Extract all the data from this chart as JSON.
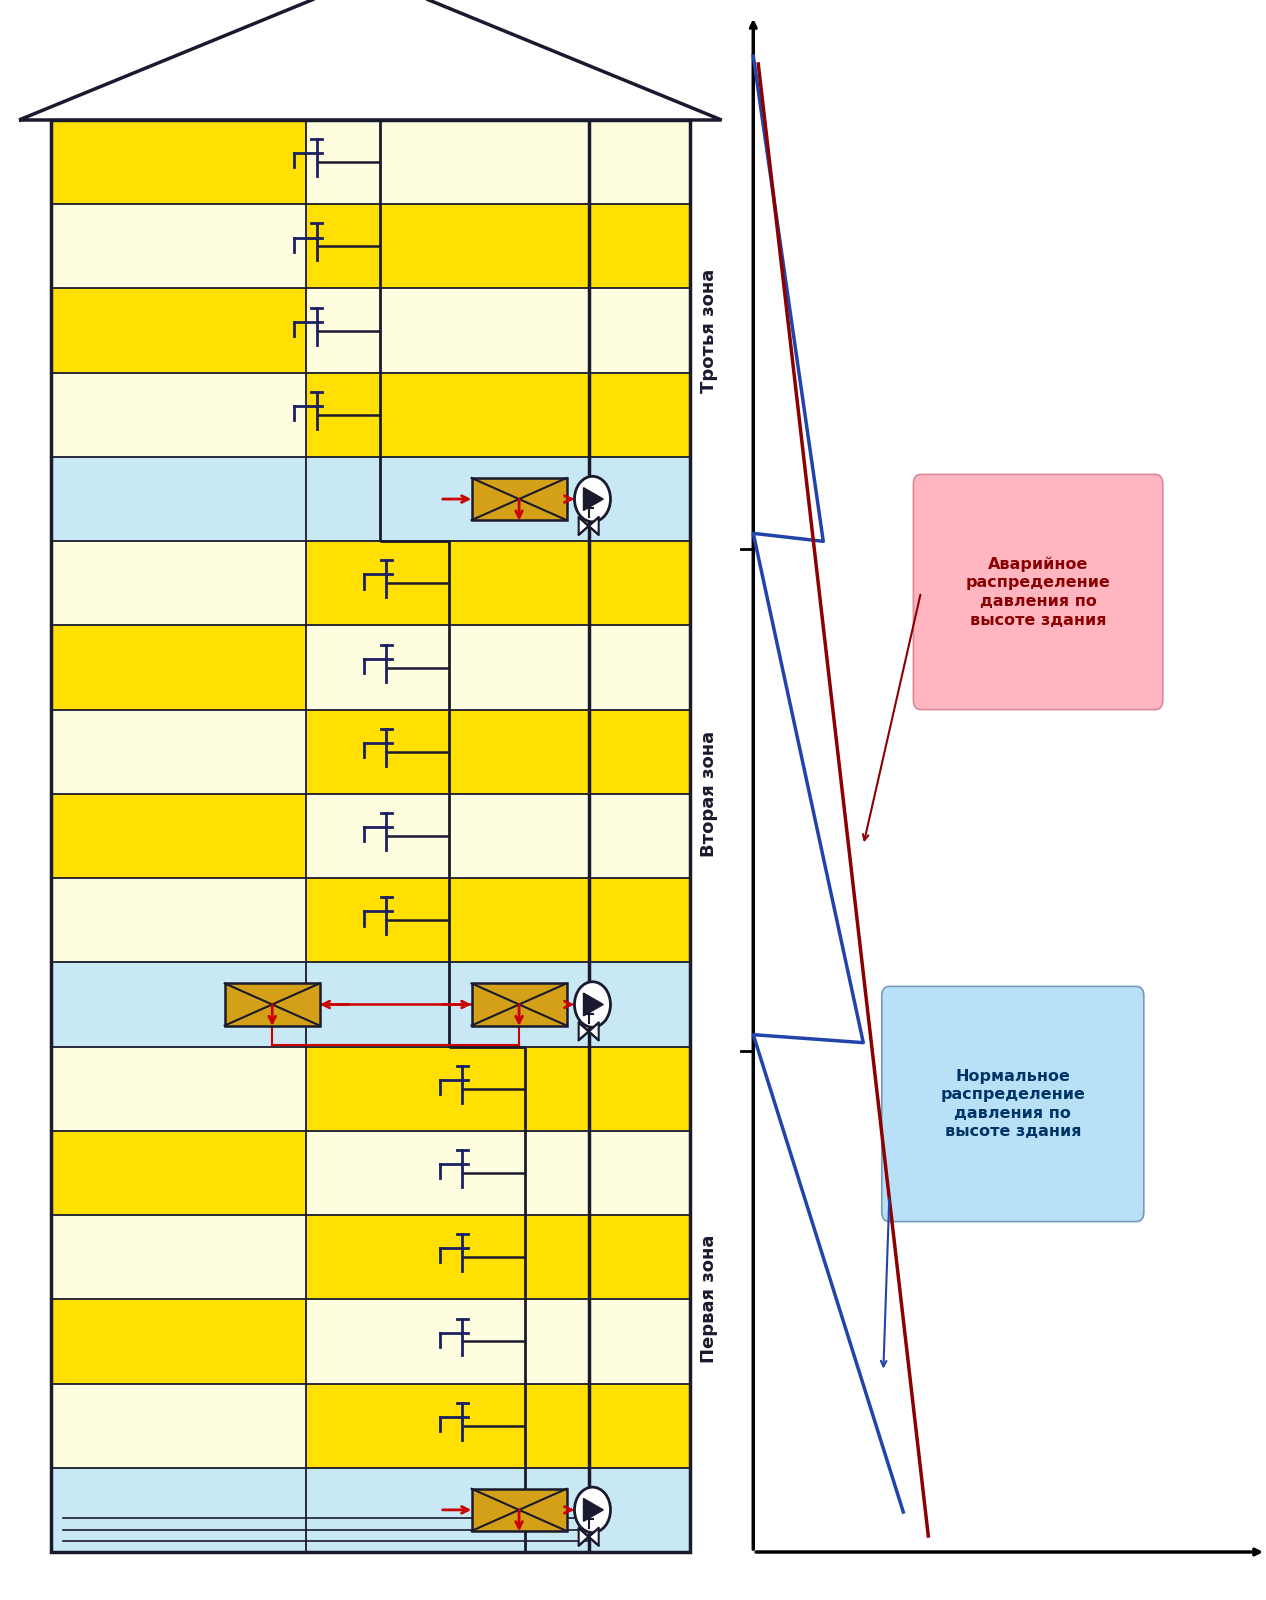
{
  "fig_width": 12.66,
  "fig_height": 16.0,
  "bg_color": "#ffffff",
  "yellow_color": "#FFE000",
  "light_yellow_color": "#FFFDE0",
  "blue_color": "#C8E8F5",
  "line_color": "#1a1a2e",
  "red_color": "#cc0000",
  "dark_red_color": "#8B0000",
  "blue_line_color": "#2244AA",
  "tank_color": "#D4A017",
  "zone_label1": "Первая зона",
  "zone_label2": "Вторая зона",
  "zone_label3": "Тротья зона",
  "annotation1_text": "Аварийное\nраспределение\nдавления по\nвысоте здания",
  "annotation2_text": "Нормальное\nраспределение\nдавления по\nвысоте здания",
  "BL": 0.04,
  "BR": 0.545,
  "BB": 0.03,
  "BT": 0.925,
  "n_rows": 17,
  "pump_rows": [
    0,
    6,
    12
  ],
  "gx0": 0.595,
  "gx1": 0.99,
  "gy0": 0.03,
  "gy1": 0.97
}
